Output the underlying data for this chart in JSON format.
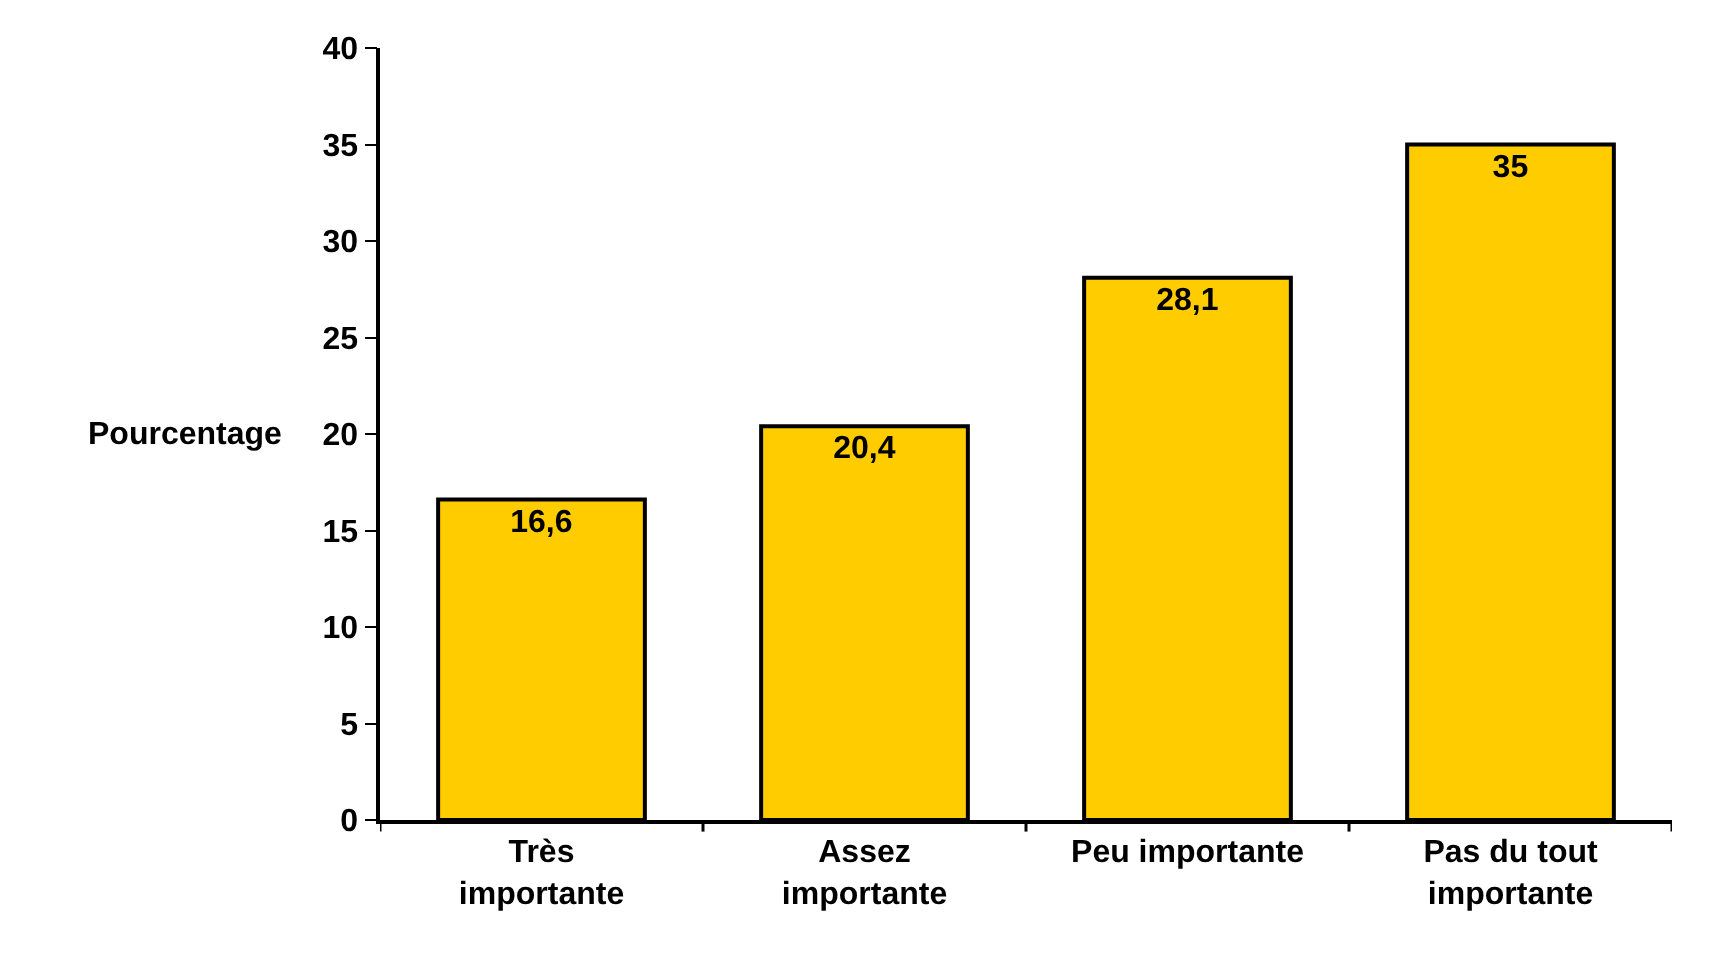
{
  "chart_data": {
    "type": "bar",
    "ylabel": "Pourcentage",
    "categories": [
      "Très importante",
      "Assez importante",
      "Peu importante",
      "Pas du tout importante"
    ],
    "values": [
      16.6,
      20.4,
      28.1,
      35
    ],
    "value_labels": [
      "16,6",
      "20,4",
      "28,1",
      "35"
    ],
    "color": "#ffcc00",
    "ylim": [
      0,
      40
    ],
    "yticks": [
      0,
      5,
      10,
      15,
      20,
      25,
      30,
      35,
      40
    ],
    "grid": false
  }
}
